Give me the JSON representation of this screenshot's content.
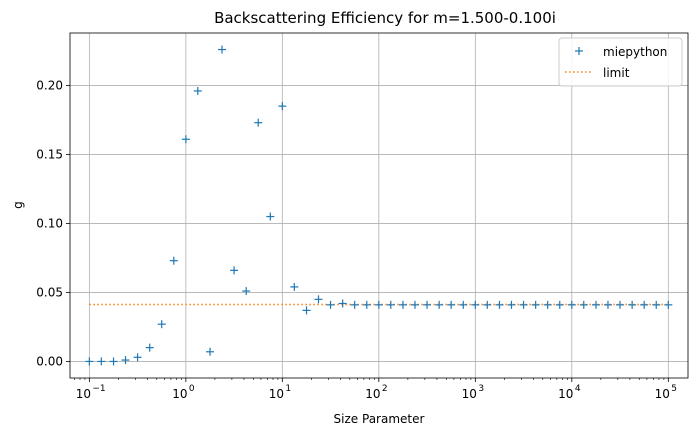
{
  "chart_data": {
    "type": "scatter",
    "title": "Backscattering Efficiency for m=1.500-0.100i",
    "xlabel": "Size Parameter",
    "ylabel": "g",
    "xscale": "log",
    "xlim": [
      0.063,
      160000
    ],
    "ylim": [
      -0.012,
      0.238
    ],
    "x_ticks": [
      {
        "base": "10",
        "exp": "−1",
        "value": 0.1
      },
      {
        "base": "10",
        "exp": "0",
        "value": 1
      },
      {
        "base": "10",
        "exp": "1",
        "value": 10
      },
      {
        "base": "10",
        "exp": "2",
        "value": 100
      },
      {
        "base": "10",
        "exp": "3",
        "value": 1000
      },
      {
        "base": "10",
        "exp": "4",
        "value": 10000
      },
      {
        "base": "10",
        "exp": "5",
        "value": 100000
      }
    ],
    "y_ticks": [
      {
        "label": "0.00",
        "value": 0.0
      },
      {
        "label": "0.05",
        "value": 0.05
      },
      {
        "label": "0.10",
        "value": 0.1
      },
      {
        "label": "0.15",
        "value": 0.15
      },
      {
        "label": "0.20",
        "value": 0.2
      }
    ],
    "grid": true,
    "legend_position": "top-right",
    "series": [
      {
        "name": "miepython",
        "marker": "+",
        "color": "#1f77b4",
        "x": [
          0.1,
          0.133,
          0.178,
          0.237,
          0.316,
          0.422,
          0.562,
          0.75,
          1.0,
          1.33,
          1.78,
          2.37,
          3.16,
          4.22,
          5.62,
          7.5,
          10.0,
          13.3,
          17.8,
          23.7,
          31.6,
          42.2,
          56.2,
          75.0,
          100,
          133,
          178,
          237,
          316,
          422,
          562,
          750,
          1000,
          1330,
          1780,
          2370,
          3160,
          4220,
          5620,
          7500,
          10000,
          13300,
          17800,
          23700,
          31600,
          42200,
          56200,
          75000,
          100000
        ],
        "y": [
          0.0,
          0.0,
          0.0,
          0.001,
          0.003,
          0.01,
          0.027,
          0.073,
          0.161,
          0.196,
          0.007,
          0.226,
          0.066,
          0.051,
          0.173,
          0.105,
          0.185,
          0.054,
          0.037,
          0.045,
          0.041,
          0.042,
          0.041,
          0.041,
          0.041,
          0.041,
          0.041,
          0.041,
          0.041,
          0.041,
          0.041,
          0.041,
          0.041,
          0.041,
          0.041,
          0.041,
          0.041,
          0.041,
          0.041,
          0.041,
          0.041,
          0.041,
          0.041,
          0.041,
          0.041,
          0.041,
          0.041,
          0.041,
          0.041
        ]
      },
      {
        "name": "limit",
        "line_style": "dotted",
        "color": "#ff7f0e",
        "x": [
          0.1,
          100000
        ],
        "y": [
          0.0413,
          0.0413
        ]
      }
    ]
  }
}
